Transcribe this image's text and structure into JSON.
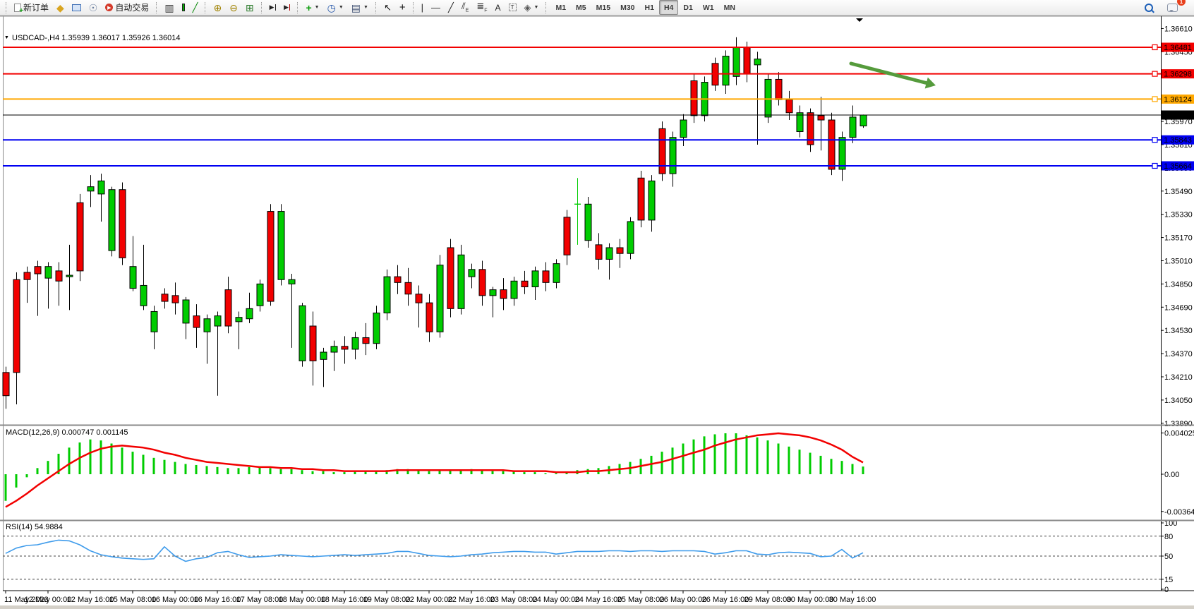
{
  "toolbar": {
    "new_order_label": "新订单",
    "auto_trading_label": "自动交易",
    "timeframes": [
      "M1",
      "M5",
      "M15",
      "M30",
      "H1",
      "H4",
      "D1",
      "W1",
      "MN"
    ],
    "active_timeframe": "H4",
    "notification_count": "1",
    "icons": [
      "new-order-icon",
      "package-icon",
      "terminal-icon",
      "signal-icon",
      "auto-trading-icon",
      "bar-chart-icon",
      "candlestick-chart-icon",
      "line-chart-icon",
      "zoom-in-icon",
      "zoom-out-icon",
      "tile-windows-icon",
      "scroll-to-end-icon",
      "chart-shift-icon",
      "new-chart-icon",
      "period-icon",
      "template-icon",
      "cursor-icon",
      "crosshair-icon",
      "vertical-line-icon",
      "horizontal-line-icon",
      "trendline-icon",
      "channel-icon",
      "fibonacci-icon",
      "text-icon",
      "text-label-icon",
      "arrows-icon",
      "search-icon",
      "chat-icon"
    ]
  },
  "chart_data": {
    "type": "candlestick",
    "title_full": "USDCAD-,H4  1.35939 1.36017 1.35926 1.36014",
    "symbol": "USDCAD-",
    "period": "H4",
    "ohlc_display": {
      "open": "1.35939",
      "high": "1.36017",
      "low": "1.35926",
      "close": "1.36014"
    },
    "price_axis_ticks": [
      "1.36610",
      "1.36450",
      "1.36290",
      "1.36130",
      "1.35970",
      "1.35810",
      "1.35650",
      "1.35490",
      "1.35330",
      "1.35170",
      "1.35010",
      "1.34850",
      "1.34690",
      "1.34530",
      "1.34370",
      "1.34210",
      "1.34050",
      "1.33890"
    ],
    "x_labels": [
      "11 May 2023",
      "12 May 00:00",
      "12 May 16:00",
      "15 May 08:00",
      "16 May 00:00",
      "16 May 16:00",
      "17 May 08:00",
      "18 May 00:00",
      "18 May 16:00",
      "19 May 08:00",
      "22 May 00:00",
      "22 May 16:00",
      "23 May 08:00",
      "24 May 00:00",
      "24 May 16:00",
      "25 May 08:00",
      "26 May 00:00",
      "26 May 16:00",
      "29 May 08:00",
      "30 May 00:00",
      "30 May 16:00"
    ],
    "horizontal_lines": [
      {
        "price": 1.36481,
        "label": "1.36481",
        "color": "#f20000"
      },
      {
        "price": 1.36298,
        "label": "1.36298",
        "color": "#f20000"
      },
      {
        "price": 1.36124,
        "label": "1.36124",
        "color": "#ffa800"
      },
      {
        "price": 1.35843,
        "label": "1.35843",
        "color": "#0000f2"
      },
      {
        "price": 1.35664,
        "label": "1.35664",
        "color": "#0000f2"
      }
    ],
    "current_price": {
      "label": "1.36014",
      "price": 1.36014
    },
    "candles": [
      [
        1.3424,
        1.3428,
        1.3399,
        1.3408
      ],
      [
        1.3488,
        1.3493,
        1.3402,
        1.3424
      ],
      [
        1.3493,
        1.3497,
        1.3472,
        1.3488
      ],
      [
        1.3497,
        1.3501,
        1.3463,
        1.3492
      ],
      [
        1.3489,
        1.35,
        1.3468,
        1.3497
      ],
      [
        1.3494,
        1.35,
        1.347,
        1.3487
      ],
      [
        1.349,
        1.3512,
        1.3467,
        1.3491
      ],
      [
        1.3541,
        1.3547,
        1.3487,
        1.3494
      ],
      [
        1.3549,
        1.356,
        1.3538,
        1.3552
      ],
      [
        1.3547,
        1.3561,
        1.3528,
        1.3556
      ],
      [
        1.3508,
        1.3552,
        1.3504,
        1.355
      ],
      [
        1.355,
        1.3555,
        1.3498,
        1.3503
      ],
      [
        1.3482,
        1.3518,
        1.348,
        1.3497
      ],
      [
        1.347,
        1.3512,
        1.3467,
        1.3484
      ],
      [
        1.3452,
        1.347,
        1.344,
        1.3466
      ],
      [
        1.3478,
        1.3482,
        1.3468,
        1.3473
      ],
      [
        1.3477,
        1.3486,
        1.3464,
        1.3472
      ],
      [
        1.3458,
        1.3476,
        1.3447,
        1.3474
      ],
      [
        1.3463,
        1.3471,
        1.3441,
        1.3455
      ],
      [
        1.3452,
        1.3464,
        1.343,
        1.3461
      ],
      [
        1.3456,
        1.3466,
        1.3408,
        1.3463
      ],
      [
        1.3481,
        1.349,
        1.3451,
        1.3456
      ],
      [
        1.3459,
        1.3466,
        1.344,
        1.3462
      ],
      [
        1.3461,
        1.3479,
        1.3458,
        1.3468
      ],
      [
        1.347,
        1.3488,
        1.3466,
        1.3485
      ],
      [
        1.3535,
        1.354,
        1.347,
        1.3473
      ],
      [
        1.3488,
        1.354,
        1.3484,
        1.3535
      ],
      [
        1.3485,
        1.3492,
        1.3441,
        1.3488
      ],
      [
        1.3432,
        1.3472,
        1.3428,
        1.347
      ],
      [
        1.3456,
        1.3466,
        1.3415,
        1.3432
      ],
      [
        1.3433,
        1.3441,
        1.3414,
        1.3438
      ],
      [
        1.3438,
        1.3446,
        1.3425,
        1.3442
      ],
      [
        1.3442,
        1.3449,
        1.343,
        1.344
      ],
      [
        1.344,
        1.3452,
        1.3433,
        1.3448
      ],
      [
        1.3448,
        1.3458,
        1.3436,
        1.3444
      ],
      [
        1.3444,
        1.347,
        1.344,
        1.3465
      ],
      [
        1.3465,
        1.3495,
        1.346,
        1.349
      ],
      [
        1.349,
        1.3498,
        1.3478,
        1.3486
      ],
      [
        1.3486,
        1.3496,
        1.347,
        1.3478
      ],
      [
        1.3478,
        1.3484,
        1.3455,
        1.3472
      ],
      [
        1.3472,
        1.3478,
        1.3445,
        1.3452
      ],
      [
        1.3452,
        1.3505,
        1.3448,
        1.3498
      ],
      [
        1.351,
        1.3516,
        1.3462,
        1.3468
      ],
      [
        1.3468,
        1.3512,
        1.3464,
        1.3505
      ],
      [
        1.349,
        1.3499,
        1.3482,
        1.3495
      ],
      [
        1.3495,
        1.3501,
        1.347,
        1.3477
      ],
      [
        1.3477,
        1.3483,
        1.3462,
        1.3481
      ],
      [
        1.3481,
        1.3489,
        1.3467,
        1.3475
      ],
      [
        1.3475,
        1.349,
        1.347,
        1.3487
      ],
      [
        1.3487,
        1.3494,
        1.3478,
        1.3483
      ],
      [
        1.3483,
        1.3497,
        1.3474,
        1.3494
      ],
      [
        1.3494,
        1.35,
        1.348,
        1.3486
      ],
      [
        1.3486,
        1.3502,
        1.3482,
        1.3499
      ],
      [
        1.3531,
        1.3536,
        1.3498,
        1.3505
      ],
      [
        1.354,
        1.3558,
        1.3512,
        1.354,
        "g"
      ],
      [
        1.3515,
        1.3545,
        1.351,
        1.354
      ],
      [
        1.3512,
        1.352,
        1.3495,
        1.3502
      ],
      [
        1.3502,
        1.3513,
        1.3488,
        1.351
      ],
      [
        1.351,
        1.3516,
        1.3496,
        1.3506
      ],
      [
        1.3506,
        1.3531,
        1.3502,
        1.3528
      ],
      [
        1.3558,
        1.3563,
        1.3524,
        1.3529
      ],
      [
        1.3529,
        1.356,
        1.3521,
        1.3556
      ],
      [
        1.3592,
        1.3597,
        1.3556,
        1.3561
      ],
      [
        1.3561,
        1.359,
        1.3552,
        1.3586
      ],
      [
        1.3586,
        1.3602,
        1.358,
        1.3598
      ],
      [
        1.3625,
        1.363,
        1.3596,
        1.3601
      ],
      [
        1.3601,
        1.3628,
        1.3597,
        1.3624
      ],
      [
        1.3637,
        1.3641,
        1.3618,
        1.3622
      ],
      [
        1.3622,
        1.3646,
        1.3616,
        1.3642
      ],
      [
        1.3628,
        1.3655,
        1.3622,
        1.3648
      ],
      [
        1.3648,
        1.3652,
        1.3624,
        1.363
      ],
      [
        1.3636,
        1.3645,
        1.3581,
        1.364
      ],
      [
        1.36,
        1.363,
        1.3596,
        1.3626
      ],
      [
        1.3626,
        1.3631,
        1.3608,
        1.3612
      ],
      [
        1.3612,
        1.3618,
        1.3598,
        1.3603
      ],
      [
        1.359,
        1.3608,
        1.3586,
        1.3603
      ],
      [
        1.3603,
        1.3606,
        1.3576,
        1.3581
      ],
      [
        1.3601,
        1.3614,
        1.3577,
        1.3598
      ],
      [
        1.3598,
        1.3603,
        1.356,
        1.3564
      ],
      [
        1.3564,
        1.359,
        1.3556,
        1.3586
      ],
      [
        1.3586,
        1.3608,
        1.3582,
        1.36
      ],
      [
        1.35939,
        1.36017,
        1.35926,
        1.36014
      ]
    ],
    "macd": {
      "label_full": "MACD(12,26,9) 0.000747 0.001145",
      "name": "MACD(12,26,9)",
      "macd_value": "0.000747",
      "signal_value": "0.001145",
      "axis_labels": [
        "0.004025",
        "0.00",
        "-0.003642"
      ],
      "axis_values": [
        0.004025,
        0,
        -0.003642
      ],
      "histogram": [
        -0.0026,
        -0.0013,
        -0.0003,
        0.0006,
        0.0013,
        0.002,
        0.0026,
        0.0031,
        0.0034,
        0.0033,
        0.003,
        0.0026,
        0.0022,
        0.0019,
        0.0016,
        0.0014,
        0.0012,
        0.001,
        0.0009,
        0.0008,
        0.0007,
        0.0006,
        0.0006,
        0.0007,
        0.0007,
        0.0006,
        0.0005,
        0.0005,
        0.0004,
        0.0003,
        0.0003,
        0.0002,
        0.0002,
        0.0003,
        0.0003,
        0.0003,
        0.0004,
        0.0005,
        0.0005,
        0.0004,
        0.0003,
        0.0004,
        0.0004,
        0.0004,
        0.0005,
        0.0004,
        0.0003,
        0.0003,
        0.0003,
        0.0002,
        0.0002,
        0.0001,
        0.0001,
        0.0002,
        0.0004,
        0.0005,
        0.0006,
        0.0008,
        0.001,
        0.0012,
        0.0015,
        0.0018,
        0.0022,
        0.0026,
        0.003,
        0.0034,
        0.0037,
        0.0039,
        0.004,
        0.004,
        0.0038,
        0.0036,
        0.0033,
        0.003,
        0.0027,
        0.0024,
        0.0021,
        0.0018,
        0.0015,
        0.0013,
        0.001,
        0.00075
      ],
      "signal": [
        -0.0032,
        -0.0026,
        -0.0019,
        -0.0011,
        -0.0004,
        0.0003,
        0.001,
        0.0016,
        0.0021,
        0.0025,
        0.0027,
        0.0028,
        0.0027,
        0.0026,
        0.0024,
        0.0021,
        0.0019,
        0.0016,
        0.0014,
        0.0012,
        0.0011,
        0.001,
        0.0009,
        0.0008,
        0.0007,
        0.0007,
        0.0006,
        0.0006,
        0.0005,
        0.0005,
        0.0004,
        0.0004,
        0.0003,
        0.0003,
        0.0003,
        0.0003,
        0.0003,
        0.0004,
        0.0004,
        0.0004,
        0.0004,
        0.0004,
        0.0004,
        0.0004,
        0.0004,
        0.0004,
        0.0004,
        0.0004,
        0.0003,
        0.0003,
        0.0003,
        0.0003,
        0.0002,
        0.0002,
        0.0002,
        0.0003,
        0.0003,
        0.0004,
        0.0005,
        0.0006,
        0.0008,
        0.001,
        0.0012,
        0.0015,
        0.0018,
        0.0021,
        0.0024,
        0.0028,
        0.0031,
        0.0034,
        0.0036,
        0.0038,
        0.0039,
        0.004,
        0.0039,
        0.0038,
        0.0036,
        0.0033,
        0.0029,
        0.0024,
        0.0017,
        0.001145
      ]
    },
    "rsi": {
      "label_full": "RSI(14) 54.9884",
      "name": "RSI(14)",
      "value": "54.9884",
      "axis_labels": [
        "100",
        "80",
        "50",
        "15",
        "0"
      ],
      "levels": [
        80,
        50,
        15
      ],
      "values": [
        54,
        62,
        66,
        67,
        71,
        74,
        73,
        67,
        58,
        52,
        49,
        47,
        46,
        45,
        46,
        64,
        50,
        42,
        46,
        48,
        55,
        57,
        52,
        48,
        49,
        50,
        52,
        51,
        50,
        49,
        50,
        51,
        52,
        51,
        52,
        53,
        54,
        57,
        57,
        54,
        51,
        50,
        49,
        50,
        52,
        53,
        55,
        56,
        57,
        57,
        56,
        56,
        53,
        55,
        57,
        57,
        57,
        58,
        58,
        57,
        58,
        58,
        57,
        58,
        58,
        58,
        57,
        53,
        55,
        58,
        58,
        53,
        52,
        55,
        56,
        55,
        54,
        49,
        50,
        60,
        47,
        55
      ]
    },
    "annotation_arrow": {
      "from": [
        1206,
        90
      ],
      "to": [
        1326,
        121
      ],
      "color": "#559b3c"
    }
  },
  "colors": {
    "bull": "#00cc00",
    "bear": "#f20000",
    "outline": "#000000",
    "macd_histogram": "#00cc00",
    "macd_signal": "#f20000",
    "rsi_line": "#3e9beb",
    "background": "#ffffff",
    "axis_text": "#000000"
  }
}
